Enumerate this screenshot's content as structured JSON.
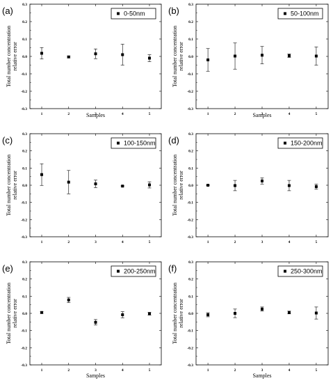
{
  "chart_data": [
    {
      "type": "scatter",
      "panel_label": "(a)",
      "legend": "0-50nm",
      "xlabel": "Samples",
      "ylabel": [
        "Total number concentration",
        "relative error"
      ],
      "x": [
        1,
        2,
        3,
        4,
        5
      ],
      "x_ticks": [
        "1",
        "2",
        "3",
        "4",
        "5"
      ],
      "y": [
        0.018,
        -0.003,
        0.015,
        0.01,
        -0.01
      ],
      "err": [
        0.033,
        0.005,
        0.028,
        0.06,
        0.02
      ],
      "ylim": [
        -0.3,
        0.3
      ],
      "y_ticks": [
        "0.3",
        "0.2",
        "0.1",
        "0.0",
        "-0.1",
        "-0.2",
        "-0.3"
      ],
      "legend_position": "top-right",
      "grid": false
    },
    {
      "type": "scatter",
      "panel_label": "(b)",
      "legend": "50-100nm",
      "xlabel": "Samples",
      "ylabel": [
        "Total number concentration",
        "relative error"
      ],
      "x": [
        1,
        2,
        3,
        4,
        5
      ],
      "x_ticks": [
        "1",
        "2",
        "3",
        "4",
        "5"
      ],
      "y": [
        -0.02,
        0.002,
        0.007,
        0.004,
        0.002
      ],
      "err": [
        0.065,
        0.075,
        0.05,
        0.01,
        0.052
      ],
      "ylim": [
        -0.3,
        0.3
      ],
      "y_ticks": [
        "0.3",
        "0.2",
        "0.1",
        "0.0",
        "-0.1",
        "-0.2",
        "-0.3"
      ],
      "legend_position": "top-right",
      "grid": false
    },
    {
      "type": "scatter",
      "panel_label": "(c)",
      "legend": "100-150nm",
      "xlabel": "",
      "ylabel": [
        "Total number concentration",
        "relative error"
      ],
      "x": [
        1,
        2,
        3,
        4,
        5
      ],
      "x_ticks": [
        "1",
        "2",
        "3",
        "4",
        "5"
      ],
      "y": [
        0.062,
        0.018,
        0.008,
        -0.005,
        0.002
      ],
      "err": [
        0.063,
        0.068,
        0.022,
        0.003,
        0.018
      ],
      "ylim": [
        -0.3,
        0.3
      ],
      "y_ticks": [
        "0.3",
        "0.2",
        "0.1",
        "0.0",
        "-0.1",
        "-0.2",
        "-0.3"
      ],
      "legend_position": "top-right",
      "grid": false
    },
    {
      "type": "scatter",
      "panel_label": "(d)",
      "legend": "150-200nm",
      "xlabel": "",
      "ylabel": [
        "Total number concentration",
        "relative error"
      ],
      "x": [
        1,
        2,
        3,
        4,
        5
      ],
      "x_ticks": [
        "1",
        "2",
        "3",
        "4",
        "5"
      ],
      "y": [
        0.0,
        -0.002,
        0.025,
        -0.002,
        -0.008
      ],
      "err": [
        0.003,
        0.03,
        0.018,
        0.03,
        0.015
      ],
      "ylim": [
        -0.3,
        0.3
      ],
      "y_ticks": [
        "0.3",
        "0.2",
        "0.1",
        "0.0",
        "-0.1",
        "-0.2",
        "-0.3"
      ],
      "legend_position": "top-right",
      "grid": false
    },
    {
      "type": "scatter",
      "panel_label": "(e)",
      "legend": "200-250nm",
      "xlabel": "Samples",
      "ylabel": [
        "Total number concentration",
        "relative error"
      ],
      "x": [
        1,
        2,
        3,
        4,
        5
      ],
      "x_ticks": [
        "1",
        "2",
        "3",
        "4",
        "5"
      ],
      "y": [
        0.005,
        0.078,
        -0.052,
        -0.008,
        -0.002
      ],
      "err": [
        0.005,
        0.015,
        0.016,
        0.018,
        0.008
      ],
      "ylim": [
        -0.3,
        0.3
      ],
      "y_ticks": [
        "0.3",
        "0.2",
        "0.1",
        "0.0",
        "-0.1",
        "-0.2",
        "-0.3"
      ],
      "legend_position": "top-right",
      "grid": false
    },
    {
      "type": "scatter",
      "panel_label": "(f)",
      "legend": "250-300nm",
      "xlabel": "Samples",
      "ylabel": [
        "Total number concentration",
        "relative error"
      ],
      "x": [
        1,
        2,
        3,
        4,
        5
      ],
      "x_ticks": [
        "1",
        "2",
        "3",
        "4",
        "5"
      ],
      "y": [
        -0.008,
        0.0,
        0.025,
        0.005,
        0.002
      ],
      "err": [
        0.012,
        0.025,
        0.012,
        0.008,
        0.035
      ],
      "ylim": [
        -0.3,
        0.3
      ],
      "y_ticks": [
        "0.3",
        "0.2",
        "0.1",
        "0.0",
        "-0.1",
        "-0.2",
        "-0.3"
      ],
      "legend_position": "top-right",
      "grid": false
    }
  ]
}
